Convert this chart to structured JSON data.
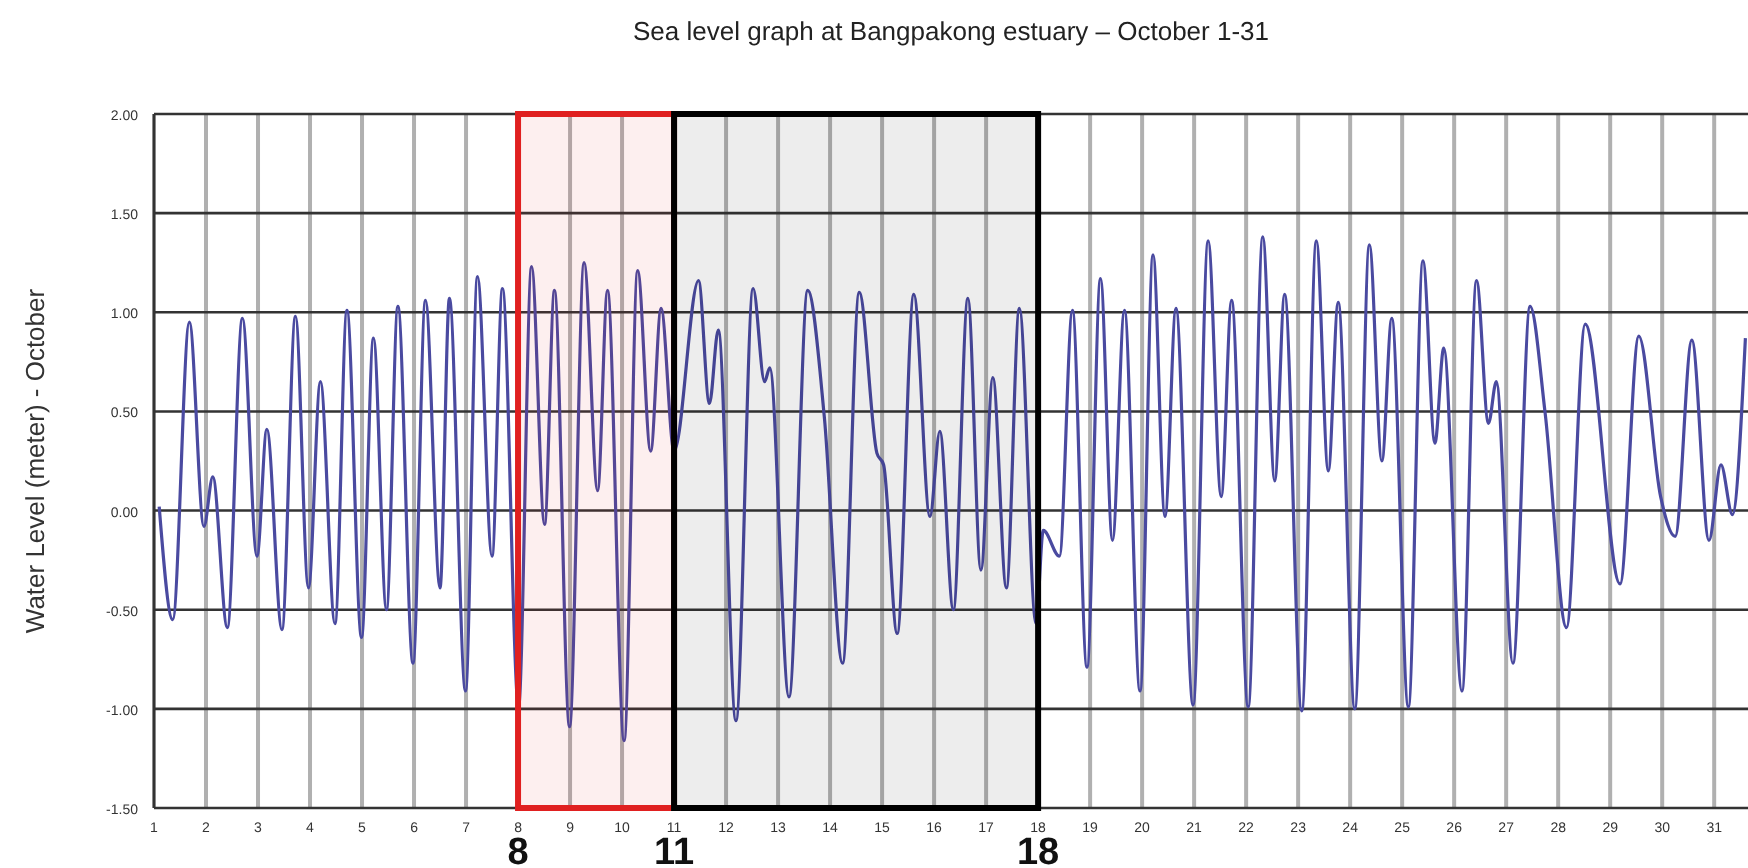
{
  "chart_data": {
    "type": "line",
    "title": "Sea level graph at Bangpakong estuary – October 1-31",
    "ylabel": "Water Level (meter) - October",
    "xlim": [
      1,
      31.65
    ],
    "xticks": [
      1,
      2,
      3,
      4,
      5,
      6,
      7,
      8,
      9,
      10,
      11,
      12,
      13,
      14,
      15,
      16,
      17,
      18,
      19,
      20,
      21,
      22,
      23,
      24,
      25,
      26,
      27,
      28,
      29,
      30,
      31
    ],
    "ylim": [
      -1.5,
      2
    ],
    "yticks": [
      {
        "value": 2,
        "label": "2.00"
      },
      {
        "value": 1.5,
        "label": "1.50"
      },
      {
        "value": 1,
        "label": "1.00"
      },
      {
        "value": 0.5,
        "label": "0.50"
      },
      {
        "value": 0,
        "label": "0.00"
      },
      {
        "value": -0.5,
        "label": "-0.50"
      },
      {
        "value": -1,
        "label": "-1.00"
      },
      {
        "value": -1.5,
        "label": "-1.50"
      }
    ],
    "grid": true,
    "marker": "none",
    "line_style": "solid",
    "bands": [
      {
        "axis": "x",
        "from": 8,
        "to": 11,
        "color": "#e02020"
      },
      {
        "axis": "x",
        "from": 11,
        "to": 18,
        "color": "#000000"
      }
    ],
    "annotations": [
      "8",
      "11",
      "18"
    ],
    "series": [
      {
        "color": "#4a4aa0",
        "x": [
          1.1,
          1.36,
          1.68,
          1.96,
          2.13,
          2.41,
          2.7,
          2.98,
          3.17,
          3.46,
          3.72,
          3.97,
          4.2,
          4.48,
          4.71,
          4.99,
          5.22,
          5.47,
          5.69,
          5.98,
          6.22,
          6.5,
          6.68,
          6.99,
          7.22,
          7.5,
          7.7,
          8.01,
          8.26,
          8.51,
          8.7,
          8.99,
          9.27,
          9.53,
          9.72,
          10.04,
          10.3,
          10.55,
          10.75,
          11.0,
          11.47,
          11.68,
          11.85,
          12.19,
          12.52,
          12.74,
          12.84,
          13.21,
          13.57,
          13.89,
          14.24,
          14.56,
          14.9,
          15.03,
          15.29,
          15.61,
          15.92,
          16.11,
          16.37,
          16.65,
          16.9,
          17.13,
          17.39,
          17.64,
          17.96,
          18.1,
          18.41,
          18.66,
          18.94,
          19.2,
          19.43,
          19.66,
          19.96,
          20.21,
          20.44,
          20.65,
          20.98,
          21.27,
          21.52,
          21.72,
          22.04,
          22.32,
          22.55,
          22.74,
          23.07,
          23.35,
          23.58,
          23.77,
          24.09,
          24.37,
          24.61,
          24.8,
          25.12,
          25.4,
          25.63,
          25.8,
          26.15,
          26.43,
          26.66,
          26.81,
          27.13,
          27.46,
          27.75,
          28.16,
          28.52,
          29.19,
          29.55,
          29.97,
          30.25,
          30.57,
          30.9,
          31.13,
          31.35,
          31.6
        ],
        "values": [
          0.02,
          -0.55,
          0.95,
          -0.08,
          0.17,
          -0.59,
          0.97,
          -0.23,
          0.41,
          -0.6,
          0.98,
          -0.39,
          0.65,
          -0.57,
          1.01,
          -0.64,
          0.87,
          -0.5,
          1.03,
          -0.77,
          1.06,
          -0.39,
          1.07,
          -0.91,
          1.18,
          -0.23,
          1.12,
          -0.99,
          1.23,
          -0.07,
          1.11,
          -1.09,
          1.25,
          0.1,
          1.11,
          -1.16,
          1.21,
          0.3,
          1.02,
          0.3,
          1.16,
          0.54,
          0.91,
          -1.06,
          1.12,
          0.65,
          0.72,
          -0.94,
          1.11,
          0.47,
          -0.77,
          1.1,
          0.29,
          0.23,
          -0.62,
          1.09,
          -0.03,
          0.4,
          -0.5,
          1.07,
          -0.3,
          0.67,
          -0.39,
          1.02,
          -0.57,
          -0.1,
          -0.23,
          1.01,
          -0.79,
          1.17,
          -0.15,
          1.01,
          -0.91,
          1.29,
          -0.03,
          1.02,
          -0.98,
          1.36,
          0.07,
          1.06,
          -0.99,
          1.38,
          0.15,
          1.09,
          -1.01,
          1.36,
          0.2,
          1.05,
          -1.0,
          1.34,
          0.25,
          0.97,
          -0.99,
          1.26,
          0.34,
          0.82,
          -0.91,
          1.16,
          0.44,
          0.65,
          -0.77,
          1.03,
          0.49,
          -0.59,
          0.94,
          -0.37,
          0.88,
          0.07,
          -0.13,
          0.86,
          -0.15,
          0.23,
          -0.02,
          0.87
        ]
      }
    ]
  }
}
